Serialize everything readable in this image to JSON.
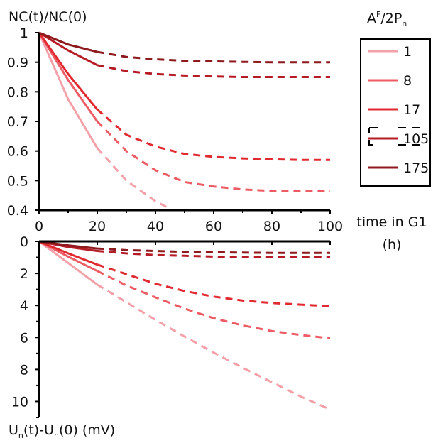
{
  "chart_data": [
    {
      "type": "line",
      "ylabel": "NC(t)/NC(0)",
      "xlabel": "time in G1 (h)",
      "xlim": [
        0,
        100
      ],
      "ylim": [
        0.4,
        1.0
      ],
      "xticks": [
        "0",
        "20",
        "40",
        "60",
        "80",
        "100"
      ],
      "yticks": [
        "0.4",
        "0.5",
        "0.6",
        "0.7",
        "0.8",
        "0.9",
        "1"
      ],
      "solid_until_x": 20,
      "legend_title": "A^F/2P_n",
      "legend_position": "right",
      "series": [
        {
          "name": "1",
          "color": "#f4a0a8",
          "x": [
            0,
            10,
            20,
            30,
            40,
            45
          ],
          "y": [
            1.0,
            0.775,
            0.61,
            0.5,
            0.43,
            0.405
          ]
        },
        {
          "name": "8",
          "color": "#ed5c64",
          "x": [
            0,
            10,
            20,
            30,
            40,
            50,
            60,
            70,
            80,
            90,
            100
          ],
          "y": [
            1.0,
            0.84,
            0.7,
            0.6,
            0.535,
            0.495,
            0.48,
            0.47,
            0.465,
            0.465,
            0.465
          ]
        },
        {
          "name": "17",
          "color": "#e02a30",
          "x": [
            0,
            10,
            20,
            30,
            40,
            50,
            60,
            70,
            80,
            90,
            100
          ],
          "y": [
            1.0,
            0.86,
            0.74,
            0.655,
            0.615,
            0.59,
            0.58,
            0.575,
            0.572,
            0.57,
            0.57
          ]
        },
        {
          "name": "105",
          "color": "#b51c26",
          "x": [
            0,
            10,
            20,
            30,
            40,
            50,
            60,
            70,
            80,
            90,
            100
          ],
          "y": [
            1.0,
            0.94,
            0.89,
            0.87,
            0.86,
            0.855,
            0.852,
            0.85,
            0.85,
            0.85,
            0.85
          ]
        },
        {
          "name": "175",
          "color": "#8c1a1e",
          "x": [
            0,
            10,
            20,
            30,
            40,
            50,
            60,
            70,
            80,
            90,
            100
          ],
          "y": [
            1.0,
            0.96,
            0.935,
            0.918,
            0.91,
            0.905,
            0.903,
            0.901,
            0.9,
            0.9,
            0.9
          ]
        }
      ]
    },
    {
      "type": "line",
      "ylabel": "U_n(t)-U_n(0) (mV)",
      "xlim": [
        0,
        100
      ],
      "ylim": [
        0,
        11
      ],
      "y_inverted": true,
      "yticks": [
        "0",
        "2",
        "4",
        "6",
        "8",
        "10"
      ],
      "solid_until_x": 20,
      "series": [
        {
          "name": "1",
          "color": "#f4a0a8",
          "x": [
            0,
            10,
            20,
            30,
            40,
            50,
            60,
            70,
            80,
            90,
            100
          ],
          "y": [
            0,
            1.35,
            2.7,
            3.8,
            4.9,
            5.95,
            6.95,
            7.9,
            8.8,
            9.7,
            10.5
          ]
        },
        {
          "name": "8",
          "color": "#ed5c64",
          "x": [
            0,
            10,
            20,
            30,
            40,
            50,
            60,
            70,
            80,
            90,
            100
          ],
          "y": [
            0,
            0.95,
            1.85,
            2.75,
            3.5,
            4.2,
            4.8,
            5.25,
            5.6,
            5.85,
            6.05
          ]
        },
        {
          "name": "17",
          "color": "#e02a30",
          "x": [
            0,
            10,
            20,
            30,
            40,
            50,
            60,
            70,
            80,
            90,
            100
          ],
          "y": [
            0,
            0.75,
            1.45,
            2.05,
            2.65,
            3.1,
            3.45,
            3.7,
            3.85,
            3.95,
            4.05
          ]
        },
        {
          "name": "105",
          "color": "#b51c26",
          "x": [
            0,
            10,
            20,
            30,
            40,
            50,
            60,
            70,
            80,
            90,
            100
          ],
          "y": [
            0,
            0.35,
            0.6,
            0.75,
            0.85,
            0.9,
            0.95,
            0.98,
            1.0,
            1.0,
            1.0
          ]
        },
        {
          "name": "175",
          "color": "#8c1a1e",
          "x": [
            0,
            10,
            20,
            30,
            40,
            50,
            60,
            70,
            80,
            90,
            100
          ],
          "y": [
            0,
            0.25,
            0.45,
            0.55,
            0.6,
            0.65,
            0.68,
            0.7,
            0.72,
            0.72,
            0.72
          ]
        }
      ]
    }
  ],
  "labels": {
    "top_ylabel": "NC(t)/NC(0)",
    "bottom_ylabel_U": "U",
    "bottom_ylabel_sub": "n",
    "bottom_ylabel_t": "(t)-U",
    "bottom_ylabel_sub2": "n",
    "bottom_ylabel_rest": "(0) (mV)",
    "xlabel_line1": "time in G1",
    "xlabel_line2": "(h)",
    "legend_title_A": "A",
    "legend_title_F": "F",
    "legend_title_mid": "/2P",
    "legend_title_n": "n"
  }
}
